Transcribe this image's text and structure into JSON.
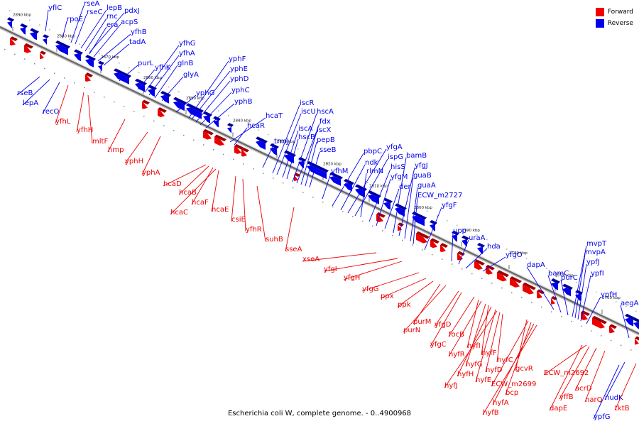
{
  "title": "Escherichia coli W, complete genome. - 0..4900968",
  "legend": [
    {
      "label": "Forward",
      "color": "#ee0000"
    },
    {
      "label": "Reverse",
      "color": "#0000ee"
    }
  ],
  "colors": {
    "forward": "#ee0000",
    "reverse": "#0000ee",
    "axis": "#666666"
  },
  "ticks": [
    "2890 kbp",
    "2880 kbp",
    "2870 kbp",
    "2860 kbp",
    "2850 kbp",
    "2840 kbp",
    "2830 kbp",
    "2820 kbp",
    "2810 kbp",
    "2800 kbp",
    "2790 kbp",
    "2780 kbp",
    "2770 kbp",
    "2760 kbp"
  ],
  "reverse_genes": [
    "yfiC",
    "rpoE",
    "rseA",
    "rseC",
    "lepB",
    "rnc",
    "pdxJ",
    "era",
    "acpS",
    "yfhB",
    "tadA",
    "purL",
    "yfhK",
    "yfhG",
    "yfhA",
    "glnB",
    "glyA",
    "yphG",
    "yphF",
    "yphE",
    "yphD",
    "yphC",
    "yphB",
    "hcaT",
    "hcaR",
    "trmJ",
    "iscR",
    "iscU",
    "iscA",
    "hscB",
    "hscA",
    "fdx",
    "iscX",
    "pepB",
    "sseB",
    "yfhM",
    "pbpC",
    "ndk",
    "yfgA",
    "ispG",
    "rlmN",
    "hisS",
    "yfgM",
    "der",
    "bamB",
    "yfgJ",
    "guaB",
    "guaA",
    "ECW_m2727",
    "yfgF",
    "upp",
    "uraA",
    "hda",
    "yfgO",
    "dapA",
    "bamC",
    "purC",
    "mvpT",
    "mvpA",
    "ypfJ",
    "ypfI",
    "ypfH",
    "aegA",
    "rseB",
    "lepA",
    "recO",
    "nudK",
    "ypfG"
  ],
  "forward_genes": [
    "yfhL",
    "yfhH",
    "mltF",
    "hmp",
    "yphH",
    "yphA",
    "hcaD",
    "hcaB",
    "hcaF",
    "hcaC",
    "hcaE",
    "csiE",
    "yfhR",
    "suhB",
    "sseA",
    "xseA",
    "yfgI",
    "yfgH",
    "yfgG",
    "ppx",
    "ppk",
    "purM",
    "purN",
    "yfgD",
    "yfgC",
    "focB",
    "hyfI",
    "hyfR",
    "hyfG",
    "hyfF",
    "hyfH",
    "hyfE",
    "hyfJ",
    "hyfD",
    "hyfC",
    "gcvR",
    "ECW_m2699",
    "bcp",
    "hyfA",
    "hyfB",
    "ECW_m2692",
    "acrD",
    "yffB",
    "dapE",
    "narQ",
    "tktB"
  ]
}
